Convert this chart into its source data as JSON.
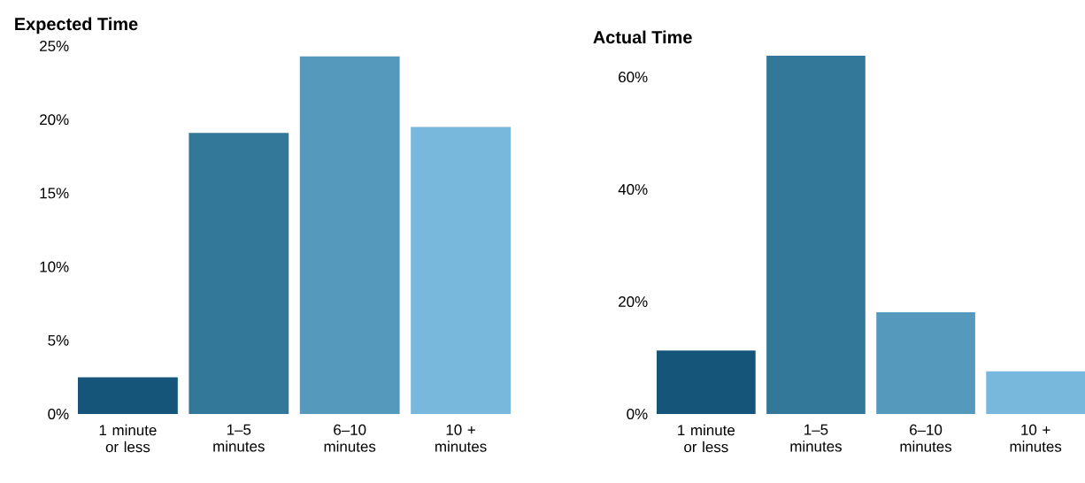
{
  "chart_data": [
    {
      "type": "bar",
      "title": "Expected Time",
      "categories": [
        "1 minute or less",
        "1–5 minutes",
        "6–10 minutes",
        "10 + minutes"
      ],
      "values": [
        2.5,
        19.1,
        24.3,
        19.5
      ],
      "colors": [
        "#15557a",
        "#337899",
        "#5599bd",
        "#78b8dc"
      ],
      "ylim": [
        0,
        25
      ],
      "yticks": [
        {
          "value": 0,
          "label": "0%"
        },
        {
          "value": 5,
          "label": "5%"
        },
        {
          "value": 10,
          "label": "10%"
        },
        {
          "value": 15,
          "label": "15%"
        },
        {
          "value": 20,
          "label": "20%"
        },
        {
          "value": 25,
          "label": "25%"
        }
      ]
    },
    {
      "type": "bar",
      "title": "Actual Time",
      "categories": [
        "1 minute or less",
        "1–5 minutes",
        "6–10 minutes",
        "10 + minutes"
      ],
      "values": [
        11.3,
        63.8,
        18.1,
        7.6
      ],
      "colors": [
        "#15557a",
        "#337899",
        "#5599bd",
        "#78b8dc"
      ],
      "ylim": [
        0,
        63.8
      ],
      "yticks": [
        {
          "value": 0,
          "label": "0%"
        },
        {
          "value": 20,
          "label": "20%"
        },
        {
          "value": 40,
          "label": "40%"
        },
        {
          "value": 60,
          "label": "60%"
        }
      ]
    }
  ]
}
